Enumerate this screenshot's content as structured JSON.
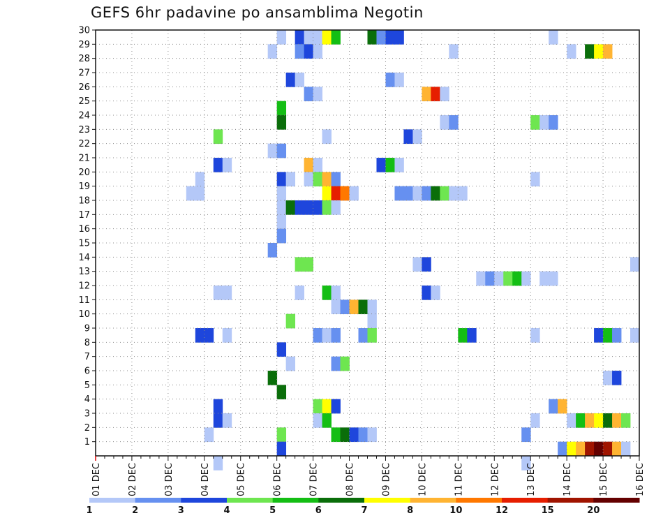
{
  "chart_data": {
    "type": "heatmap",
    "title": "GEFS 6hr padavine po ansamblima Negotin",
    "xlabel": "",
    "ylabel": "",
    "x_tick_labels": [
      "01 DEC",
      "02 DEC",
      "03 DEC",
      "04 DEC",
      "05 DEC",
      "06 DEC",
      "07 DEC",
      "08 DEC",
      "09 DEC",
      "10 DEC",
      "11 DEC",
      "12 DEC",
      "13 DEC",
      "14 DEC",
      "15 DEC",
      "16 DEC"
    ],
    "y_tick_labels": [
      "1",
      "2",
      "3",
      "4",
      "5",
      "6",
      "7",
      "8",
      "9",
      "10",
      "11",
      "12",
      "13",
      "14",
      "15",
      "16",
      "17",
      "18",
      "19",
      "20",
      "21",
      "22",
      "23",
      "24",
      "25",
      "26",
      "27",
      "28",
      "29",
      "30"
    ],
    "x_step": "6hr",
    "x_range": [
      "01 DEC 00Z",
      "16 DEC 00Z"
    ],
    "y_range": [
      1,
      30
    ],
    "grid": true,
    "colorbar": {
      "position": "bottom",
      "ticks": [
        "1",
        "2",
        "3",
        "4",
        "5",
        "6",
        "7",
        "8",
        "10",
        "12",
        "15",
        "20"
      ],
      "colors": [
        "#b4c8f8",
        "#6690f0",
        "#1e46dc",
        "#6ee650",
        "#14be14",
        "#0a6e0a",
        "#ffff00",
        "#ffb432",
        "#ff7800",
        "#e61e00",
        "#a01400",
        "#640000"
      ]
    },
    "cells": [
      {
        "y": 30,
        "t": 6,
        "v": 1.5
      },
      {
        "y": 30,
        "t": 6.5,
        "v": 3.5
      },
      {
        "y": 30,
        "t": 6.75,
        "v": 1.5
      },
      {
        "y": 30,
        "t": 7,
        "v": 1.5
      },
      {
        "y": 30,
        "t": 7.25,
        "v": 7
      },
      {
        "y": 30,
        "t": 7.5,
        "v": 5.5
      },
      {
        "y": 30,
        "t": 8.5,
        "v": 6.5
      },
      {
        "y": 30,
        "t": 8.75,
        "v": 2.5
      },
      {
        "y": 30,
        "t": 9,
        "v": 3.5
      },
      {
        "y": 30,
        "t": 9.25,
        "v": 3.5
      },
      {
        "y": 30,
        "t": 13.5,
        "v": 1.5
      },
      {
        "y": 29,
        "t": 5.75,
        "v": 1.5
      },
      {
        "y": 29,
        "t": 6.5,
        "v": 2.5
      },
      {
        "y": 29,
        "t": 6.75,
        "v": 3.5
      },
      {
        "y": 29,
        "t": 7,
        "v": 1.5
      },
      {
        "y": 29,
        "t": 10.75,
        "v": 1.5
      },
      {
        "y": 29,
        "t": 14,
        "v": 1.5
      },
      {
        "y": 29,
        "t": 14.5,
        "v": 6.5
      },
      {
        "y": 29,
        "t": 14.75,
        "v": 7.5
      },
      {
        "y": 29,
        "t": 15,
        "v": 9
      },
      {
        "y": 27,
        "t": 6.25,
        "v": 3.5
      },
      {
        "y": 27,
        "t": 6.5,
        "v": 1.5
      },
      {
        "y": 27,
        "t": 9,
        "v": 2.5
      },
      {
        "y": 27,
        "t": 9.25,
        "v": 1.5
      },
      {
        "y": 26,
        "t": 6.75,
        "v": 2.5
      },
      {
        "y": 26,
        "t": 7,
        "v": 1.5
      },
      {
        "y": 26,
        "t": 10,
        "v": 9
      },
      {
        "y": 26,
        "t": 10.25,
        "v": 13
      },
      {
        "y": 26,
        "t": 10.5,
        "v": 1.5
      },
      {
        "y": 25,
        "t": 6,
        "v": 5.5
      },
      {
        "y": 24,
        "t": 6,
        "v": 6.5
      },
      {
        "y": 24,
        "t": 10.5,
        "v": 1.5
      },
      {
        "y": 24,
        "t": 10.75,
        "v": 2.5
      },
      {
        "y": 24,
        "t": 13,
        "v": 4.5
      },
      {
        "y": 24,
        "t": 13.25,
        "v": 1.5
      },
      {
        "y": 24,
        "t": 13.5,
        "v": 2.5
      },
      {
        "y": 23,
        "t": 4.25,
        "v": 4.5
      },
      {
        "y": 23,
        "t": 7.25,
        "v": 1.5
      },
      {
        "y": 23,
        "t": 9.5,
        "v": 3.5
      },
      {
        "y": 23,
        "t": 9.75,
        "v": 1.5
      },
      {
        "y": 22,
        "t": 5.75,
        "v": 1.5
      },
      {
        "y": 22,
        "t": 6,
        "v": 2.5
      },
      {
        "y": 21,
        "t": 4.25,
        "v": 3.5
      },
      {
        "y": 21,
        "t": 4.5,
        "v": 1.5
      },
      {
        "y": 21,
        "t": 6.75,
        "v": 9
      },
      {
        "y": 21,
        "t": 7,
        "v": 1.5
      },
      {
        "y": 21,
        "t": 8.75,
        "v": 3.5
      },
      {
        "y": 21,
        "t": 9,
        "v": 5.5
      },
      {
        "y": 21,
        "t": 9.25,
        "v": 1.5
      },
      {
        "y": 20,
        "t": 3.75,
        "v": 1.5
      },
      {
        "y": 20,
        "t": 6,
        "v": 3.5
      },
      {
        "y": 20,
        "t": 6.25,
        "v": 1.5
      },
      {
        "y": 20,
        "t": 6.75,
        "v": 1.5
      },
      {
        "y": 20,
        "t": 7,
        "v": 4.5
      },
      {
        "y": 20,
        "t": 7.25,
        "v": 9
      },
      {
        "y": 20,
        "t": 7.5,
        "v": 2.5
      },
      {
        "y": 20,
        "t": 13,
        "v": 1.5
      },
      {
        "y": 19,
        "t": 3.5,
        "v": 1.5
      },
      {
        "y": 19,
        "t": 3.75,
        "v": 1.5
      },
      {
        "y": 19,
        "t": 6,
        "v": 1.5
      },
      {
        "y": 19,
        "t": 7.25,
        "v": 7.5
      },
      {
        "y": 19,
        "t": 7.5,
        "v": 13
      },
      {
        "y": 19,
        "t": 7.75,
        "v": 11
      },
      {
        "y": 19,
        "t": 8,
        "v": 1.5
      },
      {
        "y": 19,
        "t": 9.25,
        "v": 2.5
      },
      {
        "y": 19,
        "t": 9.5,
        "v": 2.5
      },
      {
        "y": 19,
        "t": 9.75,
        "v": 1.5
      },
      {
        "y": 19,
        "t": 10,
        "v": 2.5
      },
      {
        "y": 19,
        "t": 10.25,
        "v": 6.5
      },
      {
        "y": 19,
        "t": 10.5,
        "v": 4.5
      },
      {
        "y": 19,
        "t": 10.75,
        "v": 1.5
      },
      {
        "y": 19,
        "t": 11,
        "v": 1.5
      },
      {
        "y": 18,
        "t": 6,
        "v": 1.5
      },
      {
        "y": 18,
        "t": 6.25,
        "v": 6.5
      },
      {
        "y": 18,
        "t": 6.5,
        "v": 3.5
      },
      {
        "y": 18,
        "t": 6.75,
        "v": 3.5
      },
      {
        "y": 18,
        "t": 7,
        "v": 3.5
      },
      {
        "y": 18,
        "t": 7.25,
        "v": 4.5
      },
      {
        "y": 18,
        "t": 7.5,
        "v": 1.5
      },
      {
        "y": 17,
        "t": 6,
        "v": 1.5
      },
      {
        "y": 16,
        "t": 6,
        "v": 2.5
      },
      {
        "y": 15,
        "t": 5.75,
        "v": 2.5
      },
      {
        "y": 14,
        "t": 6.5,
        "v": 4.5
      },
      {
        "y": 14,
        "t": 6.75,
        "v": 4.5
      },
      {
        "y": 14,
        "t": 9.75,
        "v": 1.5
      },
      {
        "y": 14,
        "t": 10,
        "v": 3.5
      },
      {
        "y": 14,
        "t": 15.75,
        "v": 1.5
      },
      {
        "y": 13,
        "t": 11.5,
        "v": 1.5
      },
      {
        "y": 13,
        "t": 11.75,
        "v": 2.5
      },
      {
        "y": 13,
        "t": 12,
        "v": 1.5
      },
      {
        "y": 13,
        "t": 12.25,
        "v": 4.5
      },
      {
        "y": 13,
        "t": 12.5,
        "v": 5.5
      },
      {
        "y": 13,
        "t": 12.75,
        "v": 1.5
      },
      {
        "y": 13,
        "t": 13.25,
        "v": 1.5
      },
      {
        "y": 13,
        "t": 13.5,
        "v": 1.5
      },
      {
        "y": 12,
        "t": 4.25,
        "v": 1.5
      },
      {
        "y": 12,
        "t": 4.5,
        "v": 1.5
      },
      {
        "y": 12,
        "t": 6.5,
        "v": 1.5
      },
      {
        "y": 12,
        "t": 7.25,
        "v": 5.5
      },
      {
        "y": 12,
        "t": 7.5,
        "v": 1.5
      },
      {
        "y": 12,
        "t": 10,
        "v": 3.5
      },
      {
        "y": 12,
        "t": 10.25,
        "v": 1.5
      },
      {
        "y": 11,
        "t": 7.5,
        "v": 1.5
      },
      {
        "y": 11,
        "t": 7.75,
        "v": 2.5
      },
      {
        "y": 11,
        "t": 8,
        "v": 9
      },
      {
        "y": 11,
        "t": 8.25,
        "v": 6.5
      },
      {
        "y": 11,
        "t": 8.5,
        "v": 1.5
      },
      {
        "y": 10,
        "t": 6.25,
        "v": 4.5
      },
      {
        "y": 10,
        "t": 8.5,
        "v": 1.5
      },
      {
        "y": 9,
        "t": 3.75,
        "v": 3.5
      },
      {
        "y": 9,
        "t": 4,
        "v": 3.5
      },
      {
        "y": 9,
        "t": 4.5,
        "v": 1.5
      },
      {
        "y": 9,
        "t": 7,
        "v": 2.5
      },
      {
        "y": 9,
        "t": 7.25,
        "v": 1.5
      },
      {
        "y": 9,
        "t": 7.5,
        "v": 2.5
      },
      {
        "y": 9,
        "t": 8.25,
        "v": 2.5
      },
      {
        "y": 9,
        "t": 8.5,
        "v": 4.5
      },
      {
        "y": 9,
        "t": 11,
        "v": 5.5
      },
      {
        "y": 9,
        "t": 11.25,
        "v": 3.5
      },
      {
        "y": 9,
        "t": 13,
        "v": 1.5
      },
      {
        "y": 9,
        "t": 14.75,
        "v": 3.5
      },
      {
        "y": 9,
        "t": 15,
        "v": 5.5
      },
      {
        "y": 9,
        "t": 15.25,
        "v": 2.5
      },
      {
        "y": 9,
        "t": 15.75,
        "v": 1.5
      },
      {
        "y": 8,
        "t": 6,
        "v": 3.5
      },
      {
        "y": 7,
        "t": 6.25,
        "v": 1.5
      },
      {
        "y": 7,
        "t": 7.5,
        "v": 2.5
      },
      {
        "y": 7,
        "t": 7.75,
        "v": 4.5
      },
      {
        "y": 6,
        "t": 5.75,
        "v": 6.5
      },
      {
        "y": 6,
        "t": 15,
        "v": 1.5
      },
      {
        "y": 6,
        "t": 15.25,
        "v": 3.5
      },
      {
        "y": 5,
        "t": 6,
        "v": 6.5
      },
      {
        "y": 4,
        "t": 4.25,
        "v": 3.5
      },
      {
        "y": 4,
        "t": 7,
        "v": 4.5
      },
      {
        "y": 4,
        "t": 7.25,
        "v": 7.5
      },
      {
        "y": 4,
        "t": 7.5,
        "v": 3.5
      },
      {
        "y": 4,
        "t": 13.5,
        "v": 2.5
      },
      {
        "y": 4,
        "t": 13.75,
        "v": 9
      },
      {
        "y": 3,
        "t": 4.25,
        "v": 3.5
      },
      {
        "y": 3,
        "t": 4.5,
        "v": 1.5
      },
      {
        "y": 3,
        "t": 7,
        "v": 1.5
      },
      {
        "y": 3,
        "t": 7.25,
        "v": 5.5
      },
      {
        "y": 3,
        "t": 13,
        "v": 1.5
      },
      {
        "y": 3,
        "t": 14,
        "v": 1.5
      },
      {
        "y": 3,
        "t": 14.25,
        "v": 5.5
      },
      {
        "y": 3,
        "t": 14.5,
        "v": 9
      },
      {
        "y": 3,
        "t": 14.75,
        "v": 7.5
      },
      {
        "y": 3,
        "t": 15,
        "v": 6.5
      },
      {
        "y": 3,
        "t": 15.25,
        "v": 9
      },
      {
        "y": 3,
        "t": 15.5,
        "v": 4.5
      },
      {
        "y": 2,
        "t": 4,
        "v": 1.5
      },
      {
        "y": 2,
        "t": 6,
        "v": 4.5
      },
      {
        "y": 2,
        "t": 7.5,
        "v": 5.5
      },
      {
        "y": 2,
        "t": 7.75,
        "v": 6.5
      },
      {
        "y": 2,
        "t": 8,
        "v": 3.5
      },
      {
        "y": 2,
        "t": 8.25,
        "v": 2.5
      },
      {
        "y": 2,
        "t": 8.5,
        "v": 1.5
      },
      {
        "y": 2,
        "t": 12.75,
        "v": 2.5
      },
      {
        "y": 1,
        "t": 6,
        "v": 3.5
      },
      {
        "y": 1,
        "t": 13.75,
        "v": 2.5
      },
      {
        "y": 1,
        "t": 14,
        "v": 7.5
      },
      {
        "y": 1,
        "t": 14.25,
        "v": 9
      },
      {
        "y": 1,
        "t": 14.5,
        "v": 17
      },
      {
        "y": 1,
        "t": 14.75,
        "v": 22
      },
      {
        "y": 1,
        "t": 15,
        "v": 17
      },
      {
        "y": 1,
        "t": 15.25,
        "v": 9
      },
      {
        "y": 1,
        "t": 15.5,
        "v": 1.5
      },
      {
        "y": 0,
        "t": 4.25,
        "v": 1.5
      },
      {
        "y": 0,
        "t": 12.75,
        "v": 1.5
      }
    ]
  }
}
